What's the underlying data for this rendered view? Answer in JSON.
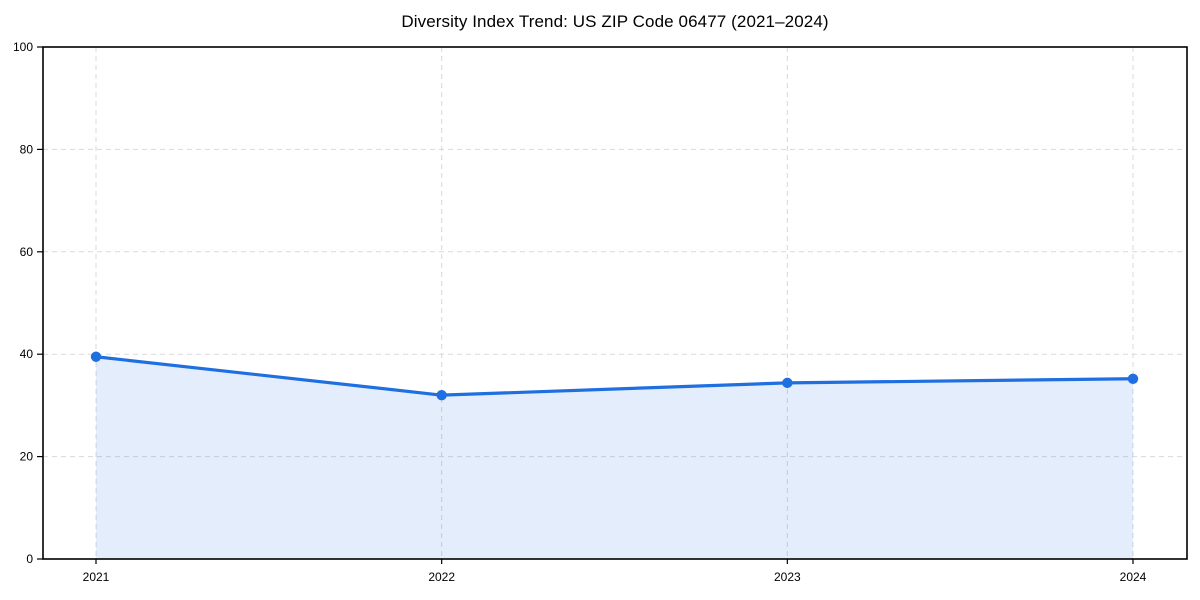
{
  "chart_data": {
    "type": "line",
    "title": "Diversity Index Trend: US ZIP Code 06477 (2021–2024)",
    "categories": [
      "2021",
      "2022",
      "2023",
      "2024"
    ],
    "series": [
      {
        "name": "Diversity Index",
        "values": [
          39.5,
          32.0,
          34.4,
          35.2
        ]
      }
    ],
    "xlabel": "",
    "ylabel": "",
    "ylim": [
      0,
      100
    ],
    "yticks": [
      0,
      20,
      40,
      60,
      80,
      100
    ],
    "grid": "dashed, horizontal and vertical at year ticks",
    "legend": "none",
    "area_fill": true,
    "markers": "filled circles",
    "colors": {
      "line": "#1f6fe0",
      "marker": "#1f6fe0",
      "area": "#1f6fe0",
      "area_opacity": 0.12,
      "grid": "#d9d9d9",
      "axis": "#000000",
      "text": "#000000",
      "background": "#ffffff"
    }
  }
}
